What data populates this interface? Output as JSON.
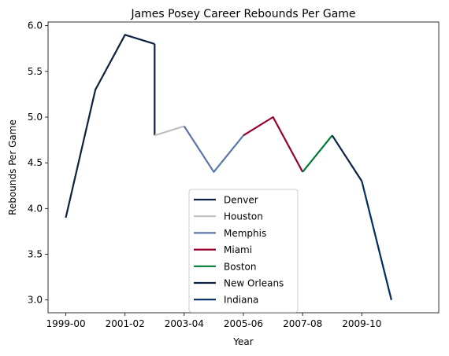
{
  "chart_data": {
    "type": "line",
    "title": "James Posey Career Rebounds Per Game",
    "xlabel": "Year",
    "ylabel": "Rebounds Per Game",
    "x_tick_labels": [
      "1999-00",
      "2001-02",
      "2003-04",
      "2005-06",
      "2007-08",
      "2009-10"
    ],
    "y_ticks": [
      "3.0",
      "3.5",
      "4.0",
      "4.5",
      "5.0",
      "5.5",
      "6.0"
    ],
    "xlim": [
      -0.6,
      12.6
    ],
    "ylim": [
      2.86,
      6.04
    ],
    "grid": false,
    "legend_position": "lower center",
    "series": [
      {
        "name": "Denver",
        "color": "#0e2240",
        "points": [
          [
            0,
            3.9
          ],
          [
            1,
            5.3
          ],
          [
            2,
            5.9
          ],
          [
            3,
            5.8
          ]
        ]
      },
      {
        "name": "Houston",
        "color": "#bfbfbf",
        "points": [
          [
            3,
            4.8
          ],
          [
            4,
            4.9
          ]
        ]
      },
      {
        "name": "Memphis",
        "color": "#5d76a9",
        "points": [
          [
            4,
            4.9
          ],
          [
            5,
            4.4
          ],
          [
            6,
            4.8
          ]
        ]
      },
      {
        "name": "Miami",
        "color": "#98002e",
        "points": [
          [
            6,
            4.8
          ],
          [
            7,
            5.0
          ],
          [
            8,
            4.4
          ]
        ]
      },
      {
        "name": "Boston",
        "color": "#007a33",
        "points": [
          [
            8,
            4.4
          ],
          [
            9,
            4.8
          ]
        ]
      },
      {
        "name": "New Orleans",
        "color": "#0c2340",
        "points": [
          [
            9,
            4.8
          ],
          [
            10,
            4.3
          ]
        ]
      },
      {
        "name": "Indiana",
        "color": "#002d62",
        "points": [
          [
            10,
            4.3
          ],
          [
            11,
            3.0
          ]
        ]
      }
    ],
    "connector": {
      "color": "#0e2240",
      "points": [
        [
          3,
          5.8
        ],
        [
          3,
          4.8
        ]
      ]
    }
  }
}
